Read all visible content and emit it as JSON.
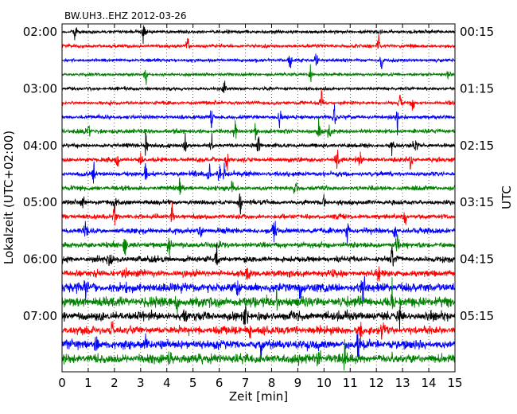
{
  "chart_data": {
    "type": "line",
    "title": "BW.UH3..EHZ 2012-03-26",
    "xlabel": "Zeit  [min]",
    "ylabel_left": "Lokalzeit (UTC+02:00)",
    "ylabel_right": "UTC",
    "xlim": [
      0,
      15
    ],
    "x_ticks": [
      "0",
      "1",
      "2",
      "3",
      "4",
      "5",
      "6",
      "7",
      "8",
      "9",
      "10",
      "11",
      "12",
      "13",
      "14",
      "15"
    ],
    "left_ticks": [
      "02:00",
      "03:00",
      "04:00",
      "05:00",
      "06:00",
      "07:00"
    ],
    "right_ticks": [
      "00:15",
      "01:15",
      "02:15",
      "03:15",
      "04:15",
      "05:15"
    ],
    "grid": "vertical dotted at each minute",
    "trace_interval_min": 15,
    "trace_colors": [
      "#000000",
      "#ff0000",
      "#0000ff",
      "#008000"
    ],
    "traces": [
      {
        "start": "02:00",
        "color": "#000000",
        "amp": 0.22,
        "bursts": [
          0.5,
          3.1
        ]
      },
      {
        "start": "02:15",
        "color": "#ff0000",
        "amp": 0.2,
        "bursts": [
          4.8,
          12.1
        ]
      },
      {
        "start": "02:30",
        "color": "#0000ff",
        "amp": 0.2,
        "bursts": [
          8.7,
          9.7,
          12.2
        ]
      },
      {
        "start": "02:45",
        "color": "#008000",
        "amp": 0.2,
        "bursts": [
          3.2,
          9.5,
          14.8
        ]
      },
      {
        "start": "03:00",
        "color": "#000000",
        "amp": 0.2,
        "bursts": [
          6.2
        ]
      },
      {
        "start": "03:15",
        "color": "#ff0000",
        "amp": 0.22,
        "bursts": [
          9.9,
          12.9,
          13.4
        ]
      },
      {
        "start": "03:30",
        "color": "#0000ff",
        "amp": 0.25,
        "bursts": [
          5.7,
          8.3,
          10.4,
          12.8
        ]
      },
      {
        "start": "03:45",
        "color": "#008000",
        "amp": 0.28,
        "bursts": [
          1.0,
          6.6,
          7.4,
          9.8,
          10.2
        ]
      },
      {
        "start": "04:00",
        "color": "#000000",
        "amp": 0.25,
        "bursts": [
          3.2,
          4.7,
          5.7,
          7.5,
          12.6,
          13.5
        ]
      },
      {
        "start": "04:15",
        "color": "#ff0000",
        "amp": 0.28,
        "bursts": [
          2.1,
          3.0,
          6.3,
          10.5,
          11.4,
          13.3
        ]
      },
      {
        "start": "04:30",
        "color": "#0000ff",
        "amp": 0.3,
        "bursts": [
          1.2,
          3.2,
          5.6,
          6.0,
          6.2
        ]
      },
      {
        "start": "04:45",
        "color": "#008000",
        "amp": 0.28,
        "bursts": [
          4.5,
          6.5,
          8.9
        ]
      },
      {
        "start": "05:00",
        "color": "#000000",
        "amp": 0.3,
        "bursts": [
          0.8,
          2.0,
          6.8,
          10.0
        ]
      },
      {
        "start": "05:15",
        "color": "#ff0000",
        "amp": 0.3,
        "bursts": [
          2.0,
          4.2,
          13.1
        ]
      },
      {
        "start": "05:30",
        "color": "#0000ff",
        "amp": 0.35,
        "bursts": [
          0.9,
          5.3,
          8.1,
          10.9,
          12.7
        ]
      },
      {
        "start": "05:45",
        "color": "#008000",
        "amp": 0.35,
        "bursts": [
          2.4,
          4.1,
          12.8
        ]
      },
      {
        "start": "06:00",
        "color": "#000000",
        "amp": 0.38,
        "bursts": [
          1.8,
          5.9,
          12.6
        ]
      },
      {
        "start": "06:15",
        "color": "#ff0000",
        "amp": 0.42,
        "bursts": [
          2.4,
          7.1,
          12.1
        ]
      },
      {
        "start": "06:30",
        "color": "#0000ff",
        "amp": 0.55,
        "bursts": [
          0.9,
          6.7,
          9.1,
          11.5
        ]
      },
      {
        "start": "06:45",
        "color": "#008000",
        "amp": 0.6,
        "bursts": [
          4.4,
          8.2,
          12.6
        ]
      },
      {
        "start": "07:00",
        "color": "#000000",
        "amp": 0.55,
        "bursts": [
          4.7,
          7.0,
          12.9
        ]
      },
      {
        "start": "07:15",
        "color": "#ff0000",
        "amp": 0.5,
        "bursts": [
          1.9,
          7.2,
          11.4,
          12.2
        ]
      },
      {
        "start": "07:30",
        "color": "#0000ff",
        "amp": 0.55,
        "bursts": [
          1.3,
          3.2,
          7.6,
          11.3
        ]
      },
      {
        "start": "07:45",
        "color": "#008000",
        "amp": 0.6,
        "bursts": [
          4.1,
          9.8,
          10.8
        ]
      }
    ]
  }
}
